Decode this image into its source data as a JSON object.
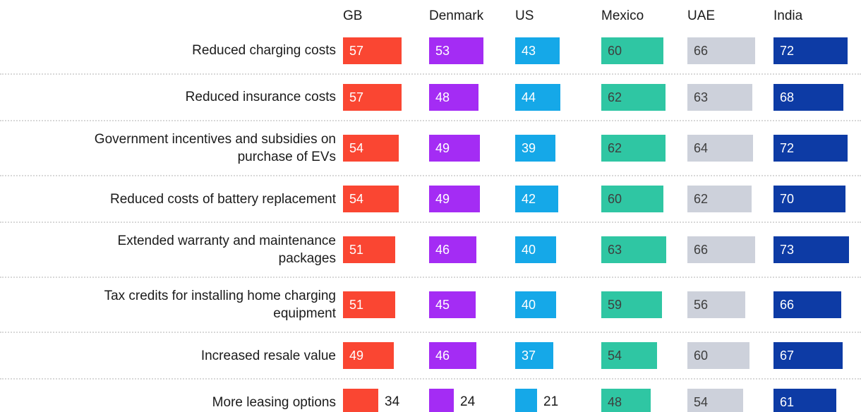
{
  "chart_data": {
    "type": "bar",
    "orientation": "horizontal",
    "title": "",
    "legend_position": "top",
    "grid": false,
    "value_range": [
      0,
      100
    ],
    "columns": [
      {
        "label": "GB",
        "color": "#FA4632",
        "value_text_color": "#FFFFFF"
      },
      {
        "label": "Denmark",
        "color": "#A42CF4",
        "value_text_color": "#FFFFFF"
      },
      {
        "label": "US",
        "color": "#15A8E8",
        "value_text_color": "#FFFFFF"
      },
      {
        "label": "Mexico",
        "color": "#2FC6A3",
        "value_text_color": "#3E3E3E"
      },
      {
        "label": "UAE",
        "color": "#CDD1DB",
        "value_text_color": "#3E3E3E"
      },
      {
        "label": "India",
        "color": "#0D3BA5",
        "value_text_color": "#FFFFFF"
      }
    ],
    "rows": [
      {
        "label": "Reduced charging costs",
        "values": [
          57,
          53,
          43,
          60,
          66,
          72
        ]
      },
      {
        "label": "Reduced insurance costs",
        "values": [
          57,
          48,
          44,
          62,
          63,
          68
        ]
      },
      {
        "label": "Government incentives and subsidies on\npurchase of EVs",
        "values": [
          54,
          49,
          39,
          62,
          64,
          72
        ]
      },
      {
        "label": "Reduced costs of battery replacement",
        "values": [
          54,
          49,
          42,
          60,
          62,
          70
        ]
      },
      {
        "label": "Extended warranty and maintenance\npackages",
        "values": [
          51,
          46,
          40,
          63,
          66,
          73
        ]
      },
      {
        "label": "Tax credits for installing home charging\nequipment",
        "values": [
          51,
          45,
          40,
          59,
          56,
          66
        ]
      },
      {
        "label": "Increased resale value",
        "values": [
          49,
          46,
          37,
          54,
          60,
          67
        ]
      },
      {
        "label": "More leasing options",
        "values": [
          34,
          24,
          21,
          48,
          54,
          61
        ]
      }
    ],
    "style": {
      "label_text_color": "#1B1B1B",
      "outside_value_text_color": "#1B1B1B",
      "separator_color": "#D8D8D8",
      "background_color": "#FFFFFF"
    }
  }
}
